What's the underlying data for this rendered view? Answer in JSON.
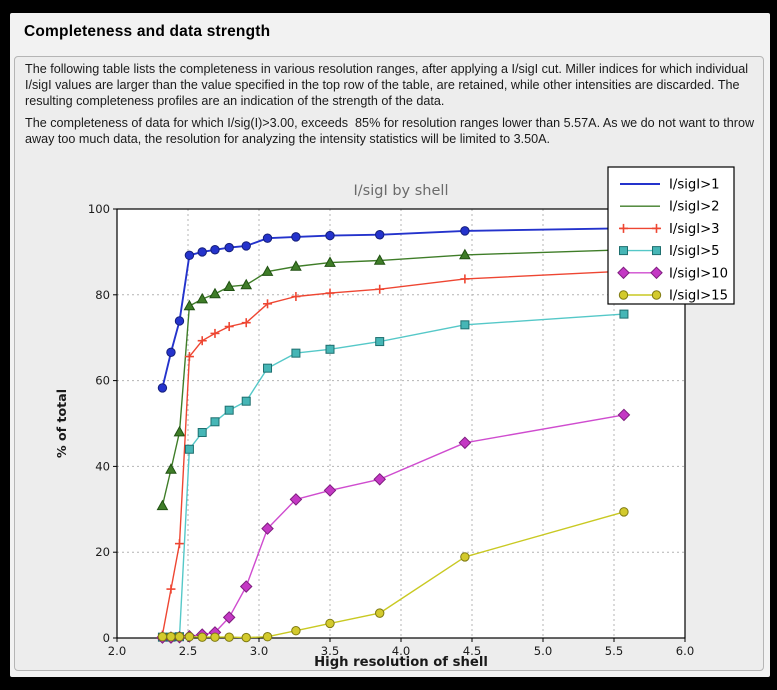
{
  "window": {
    "title": "Completeness and data strength"
  },
  "description": {
    "paragraph1": "The following table lists the completeness in various resolution ranges, after applying a I/sigI cut. Miller indices for which individual I/sigI values are larger than the value specified in the top row of the table, are retained, while other intensities are discarded. The resulting completeness profiles are an indication of the strength of the data.",
    "paragraph2": "The completeness of data for which I/sig(I)>3.00, exceeds  85% for resolution ranges lower than 5.57A. As we do not want to throw away too much data, the resolution for analyzing the intensity statistics will be limited to 3.50A."
  },
  "chart_data": {
    "type": "line",
    "title": "I/sigI by shell",
    "xlabel": "High resolution of shell",
    "ylabel": "% of total",
    "xlim": [
      2.0,
      6.0
    ],
    "ylim": [
      0,
      100
    ],
    "x_ticks": [
      "2.0",
      "2.5",
      "3.0",
      "3.5",
      "4.0",
      "4.5",
      "5.0",
      "5.5",
      "6.0"
    ],
    "y_ticks": [
      "0",
      "20",
      "40",
      "60",
      "80",
      "100"
    ],
    "grid": true,
    "legend_position": "upper right",
    "x": [
      2.32,
      2.38,
      2.44,
      2.51,
      2.6,
      2.69,
      2.79,
      2.91,
      3.06,
      3.26,
      3.5,
      3.85,
      4.45,
      5.57
    ],
    "series": [
      {
        "name": "I/sigI>1",
        "color": "#2433cc",
        "marker": "circle",
        "marker_fill": "#2433cc",
        "marker_edge": "#141e7a",
        "line_width": 1.9,
        "legend_markers": false,
        "values": [
          58.3,
          66.6,
          73.9,
          89.2,
          90.0,
          90.5,
          91.0,
          91.4,
          93.2,
          93.5,
          93.8,
          94.0,
          94.9,
          95.5
        ]
      },
      {
        "name": "I/sigI>2",
        "color": "#3f7d28",
        "marker": "triangle",
        "marker_fill": "#3f7d28",
        "marker_edge": "#205112",
        "line_width": 1.4,
        "legend_markers": false,
        "values": [
          30.8,
          39.3,
          48.0,
          77.4,
          79.0,
          80.2,
          81.9,
          82.3,
          85.4,
          86.6,
          87.5,
          88.0,
          89.3,
          90.5
        ]
      },
      {
        "name": "I/sigI>3",
        "color": "#ee4632",
        "marker": "plus",
        "marker_fill": "#ee4632",
        "marker_edge": "#ee4632",
        "line_width": 1.4,
        "legend_markers": true,
        "values": [
          0.7,
          11.4,
          22.0,
          65.6,
          69.3,
          71.0,
          72.6,
          73.5,
          77.9,
          79.6,
          80.4,
          81.3,
          83.7,
          85.5
        ]
      },
      {
        "name": "I/sigI>5",
        "color": "#55c8c8",
        "marker": "square",
        "marker_fill": "#46b6b6",
        "marker_edge": "#1e6f6f",
        "line_width": 1.4,
        "legend_markers": true,
        "values": [
          0.2,
          0.2,
          0.3,
          44.0,
          47.9,
          50.4,
          53.1,
          55.2,
          62.9,
          66.4,
          67.3,
          69.1,
          73.0,
          75.5
        ]
      },
      {
        "name": "I/sigI>10",
        "color": "#cf4ccf",
        "marker": "diamond",
        "marker_fill": "#c438c4",
        "marker_edge": "#7e1d7e",
        "line_width": 1.4,
        "legend_markers": true,
        "values": [
          0.1,
          0.1,
          0.2,
          0.4,
          0.8,
          1.3,
          4.8,
          12.0,
          25.5,
          32.3,
          34.4,
          37.0,
          45.5,
          52.0
        ]
      },
      {
        "name": "I/sigI>15",
        "color": "#c9c922",
        "marker": "circle",
        "marker_fill": "#d3ca2d",
        "marker_edge": "#7f7a12",
        "line_width": 1.4,
        "legend_markers": true,
        "values": [
          0.3,
          0.3,
          0.3,
          0.3,
          0.2,
          0.2,
          0.2,
          0.1,
          0.3,
          1.7,
          3.4,
          5.8,
          18.9,
          29.4
        ]
      }
    ]
  }
}
